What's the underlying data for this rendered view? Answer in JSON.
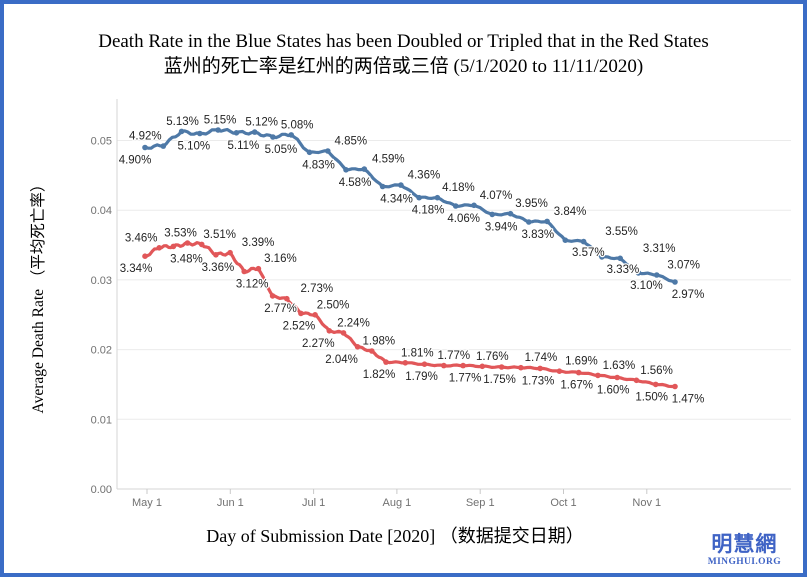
{
  "frame": {
    "border_color": "#3a6cc6",
    "background": "#ffffff"
  },
  "title": {
    "line1": "Death Rate in the Blue States has been Doubled or Tripled that in the Red States",
    "line2": "蓝州的死亡率是红州的两倍或三倍  (5/1/2020 to 11/11/2020)"
  },
  "watermark": {
    "site_cn": "明慧網",
    "site_en": "MINGHUI.ORG",
    "color": "#3f63c5"
  },
  "chart_data": {
    "type": "line",
    "title": "Death Rate in the Blue States has been Doubled or Tripled that in the Red States 蓝州的死亡率是红州的两倍或三倍 (5/1/2020 to 11/11/2020)",
    "xlabel": "Day of Submission Date [2020] （数据提交日期）",
    "ylabel": "Average Death Rate （平均死亡率）",
    "x_start": "5/1/2020",
    "x_end": "11/11/2020",
    "x_ticks": [
      "May 1",
      "Jun 1",
      "Jul 1",
      "Aug 1",
      "Sep 1",
      "Oct 1",
      "Nov 1"
    ],
    "y_ticks": [
      "0.05",
      "0.04",
      "0.03",
      "0.02",
      "0.01",
      "0.00"
    ],
    "ylim": [
      0,
      0.05
    ],
    "grid": "horizontal",
    "legend_position": "none",
    "label_color": "#242424",
    "tick_label_color": "#717171",
    "grid_color": "#ebebeb",
    "axis_line_color": "#d6d6d6",
    "series": [
      {
        "name": "Blue States",
        "color": "#4e79a7",
        "unit": "percent",
        "points": [
          {
            "v": 4.9,
            "label": "4.90%",
            "pos": "below",
            "dx": -10
          },
          {
            "v": 4.92,
            "label": "4.92%",
            "pos": "above",
            "dx": -18
          },
          {
            "v": 5.13,
            "label": "5.13%",
            "pos": "above",
            "dx": 1
          },
          {
            "v": 5.1,
            "label": "5.10%",
            "pos": "below",
            "dx": -6
          },
          {
            "v": 5.15,
            "label": "5.15%",
            "pos": "above",
            "dx": 2
          },
          {
            "v": 5.11,
            "label": "5.11%",
            "pos": "below",
            "dx": 7
          },
          {
            "v": 5.12,
            "label": "5.12%",
            "pos": "above",
            "dx": 7
          },
          {
            "v": 5.05,
            "label": "5.05%",
            "pos": "below",
            "dx": 8
          },
          {
            "v": 5.08,
            "label": "5.08%",
            "pos": "above",
            "dx": 6
          },
          {
            "v": 4.83,
            "label": "4.83%",
            "pos": "below",
            "dx": 9
          },
          {
            "v": 4.85,
            "label": "4.85%",
            "pos": "above",
            "dx": 23
          },
          {
            "v": 4.58,
            "label": "4.58%",
            "pos": "below",
            "dx": 9
          },
          {
            "v": 4.59,
            "label": "4.59%",
            "pos": "above",
            "dx": 24
          },
          {
            "v": 4.34,
            "label": "4.34%",
            "pos": "below",
            "dx": 14
          },
          {
            "v": 4.36,
            "label": "4.36%",
            "pos": "above",
            "dx": 23
          },
          {
            "v": 4.18,
            "label": "4.18%",
            "pos": "below",
            "dx": 9
          },
          {
            "v": 4.18,
            "label": "4.18%",
            "pos": "above",
            "dx": 21
          },
          {
            "v": 4.06,
            "label": "4.06%",
            "pos": "below",
            "dx": 8
          },
          {
            "v": 4.07,
            "label": "4.07%",
            "pos": "above",
            "dx": 22
          },
          {
            "v": 3.94,
            "label": "3.94%",
            "pos": "below",
            "dx": 9
          },
          {
            "v": 3.95,
            "label": "3.95%",
            "pos": "above",
            "dx": 21
          },
          {
            "v": 3.83,
            "label": "3.83%",
            "pos": "below",
            "dx": 9
          },
          {
            "v": 3.84,
            "label": "3.84%",
            "pos": "above",
            "dx": 23
          },
          {
            "v": 3.57,
            "label": "3.57%",
            "pos": "below",
            "dx": 23
          },
          {
            "v": 3.55,
            "label": "3.55%",
            "pos": "above",
            "dx": 38
          },
          {
            "v": 3.33,
            "label": "3.33%",
            "pos": "below",
            "dx": 21
          },
          {
            "v": 3.31,
            "label": "3.31%",
            "pos": "above",
            "dx": 39
          },
          {
            "v": 3.1,
            "label": "3.10%",
            "pos": "below",
            "dx": 8
          },
          {
            "v": 3.07,
            "label": "3.07%",
            "pos": "above",
            "dx": 27
          },
          {
            "v": 2.97,
            "label": "2.97%",
            "pos": "below",
            "dx": 13
          }
        ]
      },
      {
        "name": "Red States",
        "color": "#e15759",
        "unit": "percent",
        "points": [
          {
            "v": 3.34,
            "label": "3.34%",
            "pos": "below",
            "dx": -9
          },
          {
            "v": 3.46,
            "label": "3.46%",
            "pos": "above",
            "dx": -18
          },
          {
            "v": 3.48,
            "label": "3.48%",
            "pos": "below",
            "dx": 13
          },
          {
            "v": 3.53,
            "label": "3.53%",
            "pos": "above",
            "dx": -7
          },
          {
            "v": 3.51,
            "label": "3.51%",
            "pos": "above",
            "dx": 18
          },
          {
            "v": 3.36,
            "label": "3.36%",
            "pos": "below",
            "dx": 2
          },
          {
            "v": 3.39,
            "label": "3.39%",
            "pos": "above",
            "dx": 28
          },
          {
            "v": 3.12,
            "label": "3.12%",
            "pos": "below",
            "dx": 8
          },
          {
            "v": 3.16,
            "label": "3.16%",
            "pos": "above",
            "dx": 22
          },
          {
            "v": 2.77,
            "label": "2.77%",
            "pos": "below",
            "dx": 8
          },
          {
            "v": 2.73,
            "label": "2.73%",
            "pos": "above",
            "dx": 30
          },
          {
            "v": 2.52,
            "label": "2.52%",
            "pos": "below",
            "dx": -2
          },
          {
            "v": 2.5,
            "label": "2.50%",
            "pos": "above",
            "dx": 18
          },
          {
            "v": 2.27,
            "label": "2.27%",
            "pos": "below",
            "dx": -11
          },
          {
            "v": 2.24,
            "label": "2.24%",
            "pos": "above",
            "dx": 10
          },
          {
            "v": 2.04,
            "label": "2.04%",
            "pos": "below",
            "dx": -16
          },
          {
            "v": 1.98,
            "label": "1.98%",
            "pos": "above",
            "dx": 7
          },
          {
            "v": 1.82,
            "label": "1.82%",
            "pos": "below",
            "dx": -7
          },
          {
            "v": 1.81,
            "label": "1.81%",
            "pos": "above",
            "dx": 12
          },
          {
            "v": 1.79,
            "label": "1.79%",
            "pos": "below",
            "dx": -3
          },
          {
            "v": 1.77,
            "label": "1.77%",
            "pos": "above",
            "dx": 10
          },
          {
            "v": 1.77,
            "label": "1.77%",
            "pos": "below",
            "dx": 2
          },
          {
            "v": 1.76,
            "label": "1.76%",
            "pos": "above",
            "dx": 10
          },
          {
            "v": 1.75,
            "label": "1.75%",
            "pos": "below",
            "dx": -2
          },
          {
            "v": 1.74,
            "label": "1.74%",
            "pos": "above",
            "dx": 20
          },
          {
            "v": 1.73,
            "label": "1.73%",
            "pos": "below",
            "dx": -2
          },
          {
            "v": 1.69,
            "label": "1.69%",
            "pos": "above",
            "dx": 22
          },
          {
            "v": 1.67,
            "label": "1.67%",
            "pos": "below",
            "dx": -2
          },
          {
            "v": 1.63,
            "label": "1.63%",
            "pos": "above",
            "dx": 21
          },
          {
            "v": 1.6,
            "label": "1.60%",
            "pos": "below",
            "dx": -4
          },
          {
            "v": 1.56,
            "label": "1.56%",
            "pos": "above",
            "dx": 20
          },
          {
            "v": 1.5,
            "label": "1.50%",
            "pos": "below",
            "dx": -4
          },
          {
            "v": 1.47,
            "label": "1.47%",
            "pos": "below",
            "dx": 13
          }
        ]
      }
    ]
  }
}
